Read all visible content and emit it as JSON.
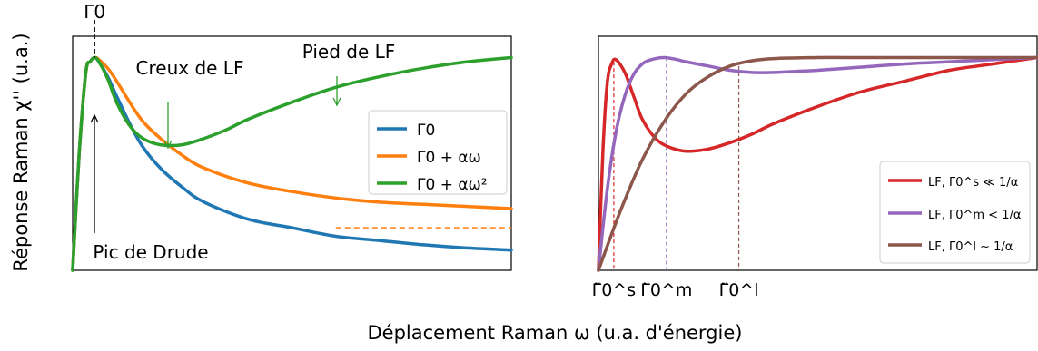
{
  "figure": {
    "ylabel": "Réponse Raman χ'' (u.a.)",
    "xlabel": "Déplacement Raman ω (u.a. d'énergie)"
  },
  "chart_data": [
    {
      "type": "line",
      "panel": "left",
      "xlim": [
        0,
        10
      ],
      "ylim": [
        0,
        1.1
      ],
      "grid": false,
      "legend_position": "center-right",
      "annotations": {
        "gamma0_label": "Γ0",
        "creux": "Creux de LF",
        "pied": "Pied de LF",
        "pic": "Pic de Drude"
      },
      "series": [
        {
          "name": "Γ0",
          "color": "#1f77b4",
          "x": [
            0,
            0.15,
            0.3,
            0.4,
            0.5,
            0.6,
            0.8,
            1.0,
            1.3,
            1.6,
            2,
            2.5,
            3,
            4,
            5,
            6,
            7,
            8,
            9,
            10
          ],
          "y": [
            0,
            0.55,
            0.93,
            0.98,
            1.0,
            0.98,
            0.91,
            0.82,
            0.69,
            0.58,
            0.48,
            0.39,
            0.32,
            0.24,
            0.2,
            0.16,
            0.14,
            0.12,
            0.105,
            0.095
          ]
        },
        {
          "name": "Γ0 + αω",
          "color": "#ff7f0e",
          "x": [
            0,
            0.15,
            0.3,
            0.4,
            0.5,
            0.6,
            0.8,
            1.0,
            1.3,
            1.6,
            2,
            2.5,
            3,
            4,
            5,
            6,
            7,
            8,
            9,
            10
          ],
          "y": [
            0,
            0.55,
            0.93,
            0.98,
            1.0,
            0.99,
            0.95,
            0.89,
            0.79,
            0.7,
            0.62,
            0.54,
            0.48,
            0.41,
            0.37,
            0.34,
            0.32,
            0.31,
            0.3,
            0.29
          ]
        },
        {
          "name": "Γ0 + αω²",
          "color": "#2ca02c",
          "x": [
            0,
            0.15,
            0.3,
            0.4,
            0.5,
            0.6,
            0.8,
            1.0,
            1.3,
            1.6,
            2,
            2.5,
            3,
            3.5,
            4,
            5,
            6,
            7,
            8,
            9,
            10
          ],
          "y": [
            0,
            0.55,
            0.93,
            0.98,
            1.0,
            0.98,
            0.9,
            0.79,
            0.68,
            0.62,
            0.59,
            0.59,
            0.62,
            0.66,
            0.71,
            0.79,
            0.86,
            0.91,
            0.95,
            0.98,
            1.0
          ]
        }
      ],
      "reference_line": {
        "y": 0.2,
        "x_from": 6.0,
        "x_to": 10,
        "color": "#ff7f0e",
        "style": "dashed"
      }
    },
    {
      "type": "line",
      "panel": "right",
      "xlim": [
        0,
        10
      ],
      "ylim": [
        0,
        1.1
      ],
      "grid": false,
      "legend_position": "lower-right",
      "series": [
        {
          "name": "LF, Γ0^s ≪ 1/α",
          "color": "#d62728",
          "x": [
            0,
            0.1,
            0.2,
            0.3,
            0.4,
            0.6,
            0.8,
            1.0,
            1.3,
            1.6,
            2,
            2.5,
            3,
            3.5,
            4,
            5,
            6,
            7,
            8,
            9,
            10
          ],
          "y": [
            0,
            0.55,
            0.88,
            0.97,
            0.99,
            0.93,
            0.82,
            0.71,
            0.62,
            0.58,
            0.56,
            0.57,
            0.6,
            0.64,
            0.69,
            0.77,
            0.84,
            0.89,
            0.94,
            0.97,
            1.0
          ]
        },
        {
          "name": "LF, Γ0^m < 1/α",
          "color": "#9467bd",
          "x": [
            0,
            0.2,
            0.4,
            0.6,
            0.8,
            1.0,
            1.2,
            1.5,
            1.8,
            2.0,
            2.5,
            3,
            3.5,
            4,
            4.5,
            5,
            6,
            7,
            8,
            9,
            10
          ],
          "y": [
            0,
            0.38,
            0.65,
            0.82,
            0.92,
            0.97,
            0.99,
            1.0,
            0.99,
            0.98,
            0.96,
            0.94,
            0.93,
            0.93,
            0.935,
            0.94,
            0.955,
            0.97,
            0.98,
            0.99,
            1.0
          ]
        },
        {
          "name": "LF, Γ0^l ~ 1/α",
          "color": "#8c564b",
          "x": [
            0,
            0.3,
            0.6,
            1.0,
            1.5,
            2.0,
            2.5,
            3.0,
            3.5,
            4.0,
            5,
            6,
            7,
            8,
            9,
            10
          ],
          "y": [
            0,
            0.17,
            0.33,
            0.52,
            0.7,
            0.83,
            0.91,
            0.96,
            0.985,
            0.995,
            1.0,
            1.0,
            1.0,
            1.0,
            1.0,
            1.0
          ]
        }
      ],
      "markers": [
        {
          "label": "Γ̃0^s",
          "x": 0.35,
          "y": 0.98,
          "color": "#d62728"
        },
        {
          "label": "Γ̃0^m",
          "x": 1.55,
          "y": 1.0,
          "color": "#9467bd"
        },
        {
          "label": "Γ̃0^l",
          "x": 3.2,
          "y": 0.96,
          "color": "#8c564b"
        }
      ]
    }
  ]
}
